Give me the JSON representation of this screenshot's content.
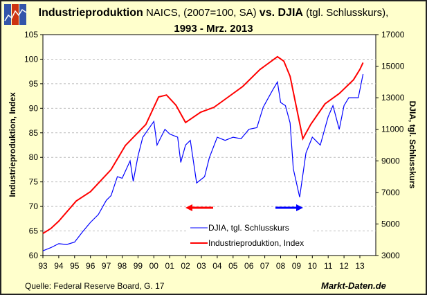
{
  "title": {
    "part1": "Industrieproduktion",
    "part2": " NAICS, (2007=100, SA) ",
    "part3": "vs. DJIA",
    "part4": " (tgl. Schlusskurs),",
    "line2": "1993 - Mrz. 2013"
  },
  "source": "Quelle: Federal Reserve Board, G. 17",
  "brand": "Markt-Daten.de",
  "colors": {
    "ip": "#FF0000",
    "djia": "#0000FF",
    "background": "#FFFFCC",
    "plot": "#FFFFFF"
  },
  "chart_data": {
    "type": "line",
    "x_ticks": [
      "93",
      "94",
      "95",
      "96",
      "97",
      "98",
      "99",
      "00",
      "01",
      "02",
      "03",
      "04",
      "05",
      "06",
      "07",
      "08",
      "09",
      "10",
      "11",
      "12",
      "13"
    ],
    "xlim": [
      1993,
      2013.9
    ],
    "y_left": {
      "label": "Industrieproduktion, Index",
      "lim": [
        60,
        105
      ],
      "ticks": [
        "60",
        "65",
        "70",
        "75",
        "80",
        "85",
        "90",
        "95",
        "100",
        "105"
      ]
    },
    "y_right": {
      "label": "DJIA, tgl. Schlusskurs",
      "lim": [
        3000,
        17000
      ],
      "ticks": [
        "3000",
        "5000",
        "7000",
        "9000",
        "11000",
        "13000",
        "15000",
        "17000"
      ]
    },
    "grid": "horizontal dashed",
    "legend": "bottom-center",
    "series": [
      {
        "name": "DJIA, tgl. Schlusskurs",
        "axis": "right",
        "x": [
          1993.0,
          1993.5,
          1994.0,
          1994.5,
          1995.0,
          1995.5,
          1996.0,
          1996.5,
          1997.0,
          1997.3,
          1997.7,
          1998.0,
          1998.5,
          1998.7,
          1999.0,
          1999.3,
          2000.0,
          2000.2,
          2000.7,
          2001.0,
          2001.5,
          2001.7,
          2002.0,
          2002.3,
          2002.7,
          2003.2,
          2003.5,
          2004.0,
          2004.5,
          2005.0,
          2005.5,
          2006.0,
          2006.5,
          2006.9,
          2007.5,
          2007.8,
          2008.0,
          2008.3,
          2008.6,
          2008.8,
          2009.2,
          2009.6,
          2010.0,
          2010.5,
          2011.0,
          2011.3,
          2011.7,
          2012.0,
          2012.3,
          2012.6,
          2012.9,
          2013.2
        ],
        "y": [
          3300,
          3500,
          3750,
          3700,
          3850,
          4500,
          5100,
          5600,
          6500,
          6800,
          8000,
          7900,
          9000,
          7700,
          9300,
          10500,
          11500,
          10000,
          11000,
          10700,
          10500,
          8900,
          10000,
          10300,
          7600,
          8000,
          9200,
          10500,
          10300,
          10500,
          10400,
          11000,
          11100,
          12400,
          13500,
          14000,
          12700,
          12500,
          11400,
          8500,
          6700,
          9500,
          10500,
          10000,
          11800,
          12500,
          11000,
          12500,
          13000,
          13000,
          13000,
          14500
        ]
      },
      {
        "name": "Industrieproduktion, Index",
        "axis": "left",
        "x": [
          1993.0,
          1993.5,
          1994.0,
          1995.1,
          1996.0,
          1997.3,
          1998.2,
          1999.5,
          2000.3,
          2000.8,
          2001.4,
          2002.0,
          2002.95,
          2003.8,
          2004.7,
          2005.6,
          2006.7,
          2007.8,
          2008.2,
          2008.6,
          2009.4,
          2009.9,
          2010.8,
          2011.7,
          2012.6,
          2013.0,
          2013.2
        ],
        "y": [
          64.5,
          65.5,
          67,
          71.1,
          73,
          77.5,
          82.4,
          86.7,
          92.3,
          92.7,
          90.6,
          87.1,
          89.2,
          90.2,
          92.3,
          94.4,
          97.9,
          100.5,
          99.6,
          96.5,
          83.8,
          86.7,
          90.9,
          93,
          95.8,
          97.9,
          99.3
        ]
      }
    ]
  }
}
